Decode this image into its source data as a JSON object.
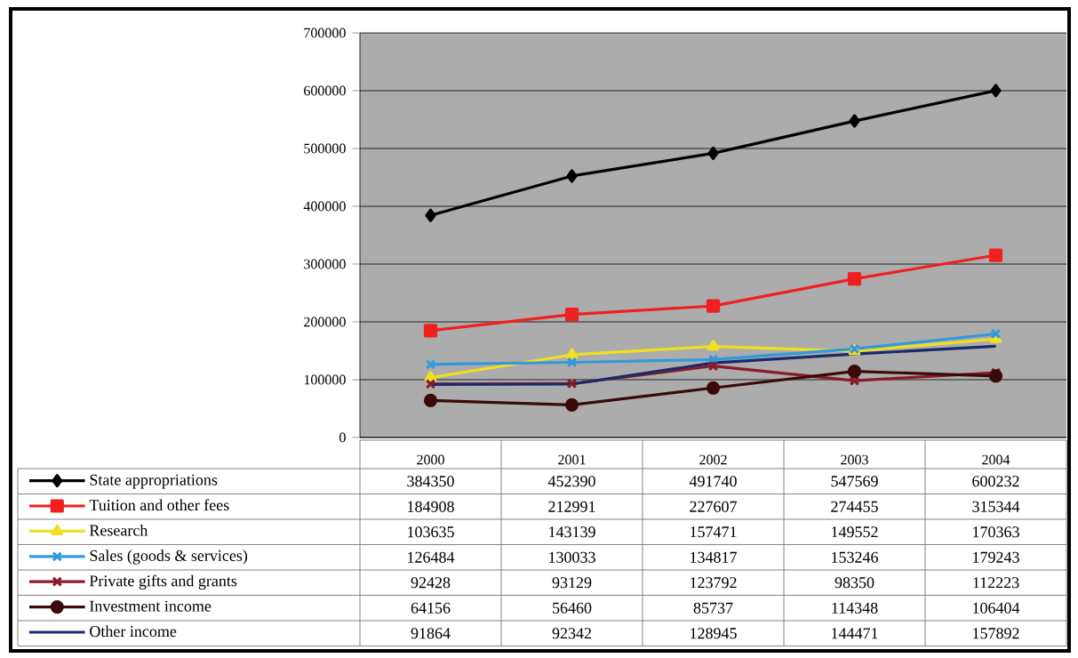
{
  "chart_data": {
    "type": "line",
    "categories": [
      "2000",
      "2001",
      "2002",
      "2003",
      "2004"
    ],
    "series": [
      {
        "name": "State appropriations",
        "color": "#000000",
        "marker": "diamond",
        "values": [
          384350,
          452390,
          491740,
          547569,
          600232
        ]
      },
      {
        "name": "Tuition and other fees",
        "color": "#f02020",
        "marker": "square",
        "values": [
          184908,
          212991,
          227607,
          274455,
          315344
        ]
      },
      {
        "name": "Research",
        "color": "#f0e020",
        "marker": "triangle",
        "values": [
          103635,
          143139,
          157471,
          149552,
          170363
        ]
      },
      {
        "name": "Sales (goods & services)",
        "color": "#3399dd",
        "marker": "cross",
        "values": [
          126484,
          130033,
          134817,
          153246,
          179243
        ]
      },
      {
        "name": "Private gifts and grants",
        "color": "#8b1a2a",
        "marker": "cross",
        "values": [
          92428,
          93129,
          123792,
          98350,
          112223
        ]
      },
      {
        "name": "Investment income",
        "color": "#3a0a0a",
        "marker": "circle",
        "values": [
          64156,
          56460,
          85737,
          114348,
          106404
        ]
      },
      {
        "name": "Other income",
        "color": "#1a2a6a",
        "marker": "none",
        "values": [
          91864,
          92342,
          128945,
          144471,
          157892
        ]
      }
    ],
    "ylim": [
      0,
      700000
    ],
    "yticks": [
      0,
      100000,
      200000,
      300000,
      400000,
      500000,
      600000,
      700000
    ],
    "grid": "y",
    "legend": "bottom",
    "data_labels": true
  }
}
